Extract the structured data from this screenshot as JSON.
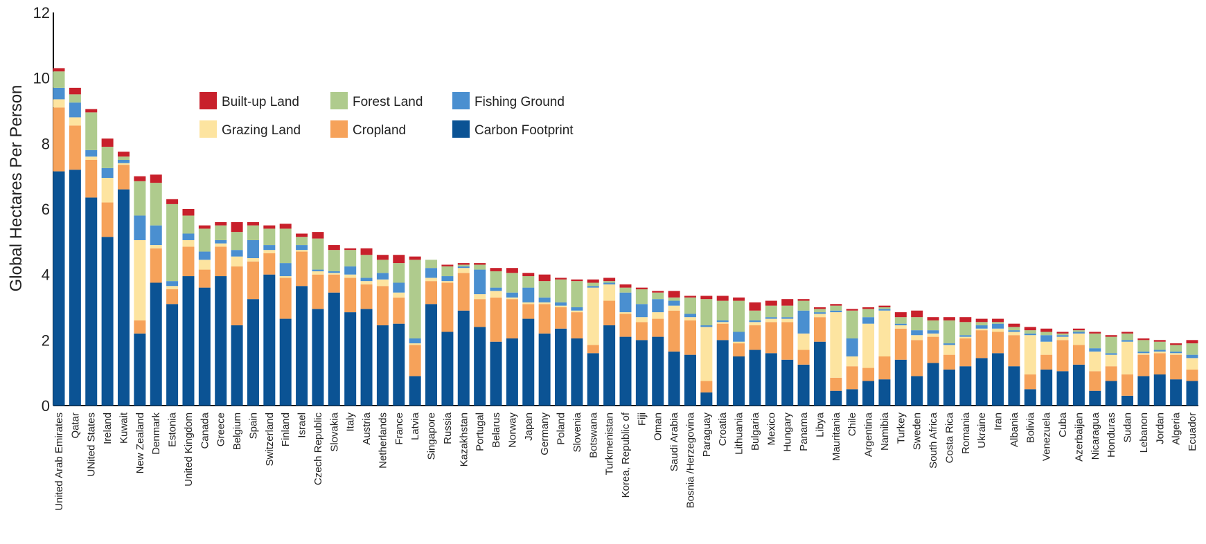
{
  "chart_data": {
    "type": "bar",
    "stacked": true,
    "title": "",
    "xlabel": "",
    "ylabel": "Global Hectares Per Person",
    "ylim": [
      0,
      12
    ],
    "yticks": [
      0,
      2,
      4,
      6,
      8,
      10,
      12
    ],
    "grid": false,
    "legend_position": "top-center",
    "categories": [
      "United Arab Emirates",
      "Qatar",
      "UNited States",
      "Ireland",
      "Kuwait",
      "New Zealand",
      "Denmark",
      "Estonia",
      "United Kingdom",
      "Canada",
      "Greece",
      "Belgium",
      "Spain",
      "Switzerland",
      "Finland",
      "Israel",
      "Czech Republic",
      "Slovakia",
      "Italy",
      "Austria",
      "Netherlands",
      "France",
      "Latvia",
      "Singapore",
      "Russia",
      "Kazakhstan",
      "Portugal",
      "Belarus",
      "Norway",
      "Japan",
      "Germany",
      "Poland",
      "Slovenia",
      "Botswana",
      "Turkmenistan",
      "Korea, Republic of",
      "Fiji",
      "Oman",
      "Saudi Arabia",
      "Bosnia /Herzegovina",
      "Paraguay",
      "Croatia",
      "Lithuania",
      "Bulgaria",
      "Mexico",
      "Hungary",
      "Panama",
      "Libya",
      "Mauritania",
      "Chile",
      "Argentina",
      "Namibia",
      "Turkey",
      "Sweden",
      "South Africa",
      "Costa Rica",
      "Romania",
      "Ukraine",
      "Iran",
      "Albania",
      "Bolivia",
      "Venezuela",
      "Cuba",
      "Azerbaijan",
      "Nicaragua",
      "Honduras",
      "Sudan",
      "Lebanon",
      "Jordan",
      "Algeria",
      "Ecuador"
    ],
    "series": [
      {
        "name": "Carbon Footprint",
        "color": "#0b5394",
        "values": [
          7.15,
          7.2,
          6.35,
          5.15,
          6.6,
          2.2,
          3.75,
          3.1,
          3.95,
          3.6,
          3.95,
          2.45,
          3.25,
          4.0,
          2.65,
          3.65,
          2.95,
          3.45,
          2.85,
          2.95,
          2.45,
          2.5,
          0.9,
          3.1,
          2.25,
          2.9,
          2.4,
          1.95,
          2.05,
          2.65,
          2.2,
          2.35,
          2.05,
          1.6,
          2.45,
          2.1,
          2.0,
          2.1,
          1.65,
          1.55,
          0.4,
          2.0,
          1.5,
          1.7,
          1.6,
          1.4,
          1.25,
          1.95,
          0.45,
          0.5,
          0.75,
          0.8,
          1.4,
          0.9,
          1.3,
          1.1,
          1.2,
          1.45,
          1.6,
          1.2,
          0.5,
          1.1,
          1.05,
          1.25,
          0.45,
          0.75,
          0.3,
          0.9,
          0.95,
          0.8,
          0.75
        ]
      },
      {
        "name": "Cropland",
        "color": "#f6a25a",
        "values": [
          1.95,
          1.35,
          1.15,
          1.05,
          0.75,
          0.4,
          1.05,
          0.45,
          0.9,
          0.55,
          0.9,
          1.8,
          1.15,
          0.65,
          1.25,
          1.05,
          1.05,
          0.55,
          1.05,
          0.75,
          1.2,
          0.8,
          0.95,
          0.7,
          1.5,
          1.15,
          0.85,
          1.35,
          1.2,
          0.45,
          0.9,
          0.65,
          0.8,
          0.25,
          0.75,
          0.7,
          0.55,
          0.55,
          1.25,
          1.05,
          0.35,
          0.5,
          0.4,
          0.75,
          0.95,
          1.15,
          0.45,
          0.75,
          0.4,
          0.7,
          0.4,
          0.7,
          0.95,
          1.1,
          0.8,
          0.45,
          0.85,
          0.85,
          0.65,
          0.95,
          0.45,
          0.45,
          0.95,
          0.6,
          0.6,
          0.45,
          0.65,
          0.65,
          0.65,
          0.75,
          0.35
        ]
      },
      {
        "name": "Grazing Land",
        "color": "#fde4a0",
        "values": [
          0.25,
          0.25,
          0.1,
          0.75,
          0.05,
          2.45,
          0.1,
          0.1,
          0.2,
          0.3,
          0.1,
          0.3,
          0.1,
          0.1,
          0.05,
          0.05,
          0.1,
          0.05,
          0.1,
          0.1,
          0.2,
          0.15,
          0.05,
          0.1,
          0.05,
          0.15,
          0.15,
          0.2,
          0.05,
          0.05,
          0.05,
          0.05,
          0.05,
          1.75,
          0.5,
          0.05,
          0.15,
          0.2,
          0.15,
          0.1,
          1.65,
          0.05,
          0.05,
          0.1,
          0.1,
          0.1,
          0.5,
          0.1,
          2.0,
          0.3,
          1.35,
          1.4,
          0.1,
          0.15,
          0.1,
          0.3,
          0.05,
          0.05,
          0.1,
          0.1,
          1.2,
          0.4,
          0.1,
          0.35,
          0.6,
          0.35,
          1.0,
          0.05,
          0.05,
          0.05,
          0.35
        ]
      },
      {
        "name": "Fishing Ground",
        "color": "#4a8fd0",
        "values": [
          0.35,
          0.45,
          0.2,
          0.3,
          0.1,
          0.75,
          0.6,
          0.15,
          0.2,
          0.25,
          0.1,
          0.2,
          0.55,
          0.15,
          0.4,
          0.15,
          0.05,
          0.05,
          0.25,
          0.1,
          0.2,
          0.3,
          0.15,
          0.3,
          0.15,
          0.05,
          0.75,
          0.1,
          0.15,
          0.45,
          0.15,
          0.1,
          0.1,
          0.05,
          0.05,
          0.6,
          0.4,
          0.4,
          0.15,
          0.1,
          0.05,
          0.05,
          0.3,
          0.05,
          0.05,
          0.05,
          0.7,
          0.05,
          0.05,
          0.55,
          0.2,
          0.05,
          0.05,
          0.15,
          0.1,
          0.05,
          0.05,
          0.1,
          0.15,
          0.05,
          0.05,
          0.2,
          0.05,
          0.05,
          0.1,
          0.05,
          0.05,
          0.05,
          0.05,
          0.05,
          0.1
        ]
      },
      {
        "name": "Forest Land",
        "color": "#afcb8d",
        "values": [
          0.5,
          0.25,
          1.15,
          0.65,
          0.1,
          1.05,
          1.3,
          2.35,
          0.55,
          0.7,
          0.45,
          0.55,
          0.45,
          0.5,
          1.05,
          0.25,
          0.95,
          0.65,
          0.5,
          0.7,
          0.4,
          0.6,
          2.4,
          0.25,
          0.3,
          0.05,
          0.15,
          0.5,
          0.6,
          0.35,
          0.5,
          0.7,
          0.8,
          0.1,
          0.05,
          0.15,
          0.45,
          0.2,
          0.1,
          0.5,
          0.8,
          0.6,
          0.95,
          0.3,
          0.35,
          0.35,
          0.3,
          0.1,
          0.15,
          0.85,
          0.25,
          0.05,
          0.2,
          0.4,
          0.3,
          0.7,
          0.4,
          0.1,
          0.05,
          0.1,
          0.1,
          0.1,
          0.05,
          0.05,
          0.45,
          0.5,
          0.2,
          0.35,
          0.25,
          0.2,
          0.35
        ]
      },
      {
        "name": "Built-up Land",
        "color": "#c8202b",
        "values": [
          0.1,
          0.2,
          0.1,
          0.25,
          0.15,
          0.15,
          0.25,
          0.15,
          0.2,
          0.1,
          0.1,
          0.3,
          0.1,
          0.1,
          0.15,
          0.1,
          0.2,
          0.15,
          0.05,
          0.2,
          0.15,
          0.25,
          0.1,
          0.0,
          0.05,
          0.05,
          0.05,
          0.1,
          0.15,
          0.1,
          0.2,
          0.05,
          0.05,
          0.1,
          0.1,
          0.1,
          0.05,
          0.05,
          0.2,
          0.05,
          0.1,
          0.15,
          0.1,
          0.25,
          0.15,
          0.2,
          0.05,
          0.05,
          0.05,
          0.05,
          0.05,
          0.05,
          0.15,
          0.2,
          0.1,
          0.1,
          0.15,
          0.1,
          0.1,
          0.1,
          0.1,
          0.1,
          0.05,
          0.05,
          0.05,
          0.05,
          0.05,
          0.05,
          0.05,
          0.05,
          0.1
        ]
      }
    ],
    "legend_order": [
      "Built-up Land",
      "Forest Land",
      "Fishing Ground",
      "Grazing Land",
      "Cropland",
      "Carbon Footprint"
    ]
  }
}
